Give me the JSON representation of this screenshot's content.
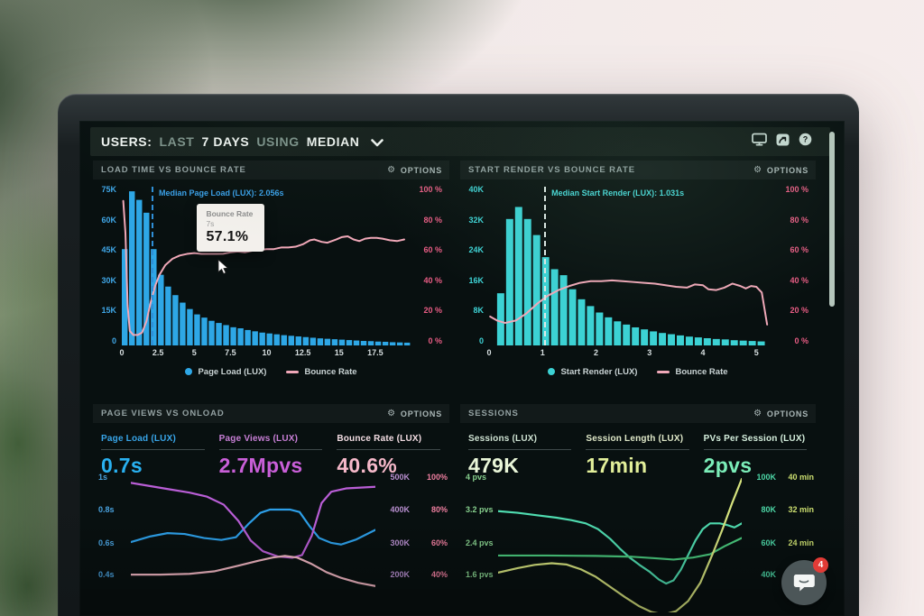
{
  "header": {
    "segments": [
      {
        "text": "USERS:",
        "em": true
      },
      {
        "text": "LAST",
        "em": false
      },
      {
        "text": "7 DAYS",
        "em": true
      },
      {
        "text": "USING",
        "em": false
      },
      {
        "text": "MEDIAN",
        "em": true
      }
    ]
  },
  "panels": {
    "load_time": {
      "title": "LOAD TIME VS BOUNCE RATE",
      "options": "OPTIONS"
    },
    "start_render": {
      "title": "START RENDER VS BOUNCE RATE",
      "options": "OPTIONS"
    },
    "page_views": {
      "title": "PAGE VIEWS VS ONLOAD",
      "options": "OPTIONS",
      "metrics": [
        {
          "label": "Page Load (LUX)",
          "value": "0.7s"
        },
        {
          "label": "Page Views (LUX)",
          "value": "2.7Mpvs"
        },
        {
          "label": "Bounce Rate (LUX)",
          "value": "40.6%"
        }
      ]
    },
    "sessions": {
      "title": "SESSIONS",
      "options": "OPTIONS",
      "metrics": [
        {
          "label": "Sessions (LUX)",
          "value": "479K"
        },
        {
          "label": "Session Length (LUX)",
          "value": "17min"
        },
        {
          "label": "PVs Per Session (LUX)",
          "value": "2pvs"
        }
      ]
    }
  },
  "chat": {
    "badge": "4"
  },
  "chart_data": [
    {
      "id": "load-time",
      "type": "histogram",
      "title": "LOAD TIME VS BOUNCE RATE",
      "x_max": 20,
      "x_ticks": [
        0,
        2.5,
        5,
        7.5,
        10,
        12.5,
        15,
        17.5
      ],
      "y_left_max": 75,
      "y_left_ticks": [
        "75K",
        "60K",
        "45K",
        "30K",
        "15K",
        "0"
      ],
      "y_right_ticks": [
        "100 %",
        "80 %",
        "60 %",
        "40 %",
        "20 %",
        "0 %"
      ],
      "bars": {
        "name": "Page Load (LUX)",
        "color": "#2ea7e6",
        "start": 0,
        "bin": 0.5,
        "unit": "K",
        "values": [
          45,
          72,
          68,
          62,
          45,
          33,
          27.5,
          23.5,
          20,
          17,
          14.5,
          13,
          11.5,
          10.5,
          9.5,
          8.5,
          8,
          7.2,
          6.6,
          6,
          5.6,
          5.2,
          4.8,
          4.5,
          4.2,
          3.9,
          3.6,
          3.3,
          3.1,
          2.9,
          2.7,
          2.5,
          2.3,
          2.1,
          2,
          1.8,
          1.7,
          1.5,
          1.4,
          1.3
        ]
      },
      "line": {
        "name": "Bounce Rate",
        "color": "#f0a8b8",
        "unit": "%",
        "points": [
          [
            0.1,
            90
          ],
          [
            0.25,
            70
          ],
          [
            0.4,
            25
          ],
          [
            0.55,
            9
          ],
          [
            0.8,
            6.5
          ],
          [
            1.1,
            6.5
          ],
          [
            1.4,
            8
          ],
          [
            1.7,
            15
          ],
          [
            2,
            27
          ],
          [
            2.3,
            37
          ],
          [
            2.6,
            44
          ],
          [
            3,
            50
          ],
          [
            3.5,
            54
          ],
          [
            4,
            56
          ],
          [
            4.5,
            57
          ],
          [
            5,
            57.5
          ],
          [
            5.5,
            57
          ],
          [
            6,
            57
          ],
          [
            6.5,
            57
          ],
          [
            7,
            57.1
          ],
          [
            7.5,
            58
          ],
          [
            8,
            58.5
          ],
          [
            8.5,
            58
          ],
          [
            9,
            59
          ],
          [
            9.5,
            59.5
          ],
          [
            10,
            60
          ],
          [
            10.5,
            60
          ],
          [
            11,
            61
          ],
          [
            11.5,
            61
          ],
          [
            12,
            61.5
          ],
          [
            12.5,
            63
          ],
          [
            13,
            65.5
          ],
          [
            13.3,
            66
          ],
          [
            13.8,
            64.5
          ],
          [
            14.2,
            64
          ],
          [
            14.8,
            66
          ],
          [
            15.2,
            67.5
          ],
          [
            15.6,
            68
          ],
          [
            16,
            66
          ],
          [
            16.4,
            65
          ],
          [
            16.8,
            66.5
          ],
          [
            17.2,
            67
          ],
          [
            17.6,
            67
          ],
          [
            18,
            66.5
          ],
          [
            18.5,
            65.5
          ],
          [
            19,
            65
          ],
          [
            19.5,
            66
          ]
        ]
      },
      "median": {
        "label": "Median Page Load (LUX): 2.056s",
        "x": 2.056,
        "line_color": "#2f8fd8",
        "text_color": "#3aa0e8"
      },
      "tooltip": {
        "title": "Bounce Rate",
        "subtitle": "7s",
        "value": "57.1%"
      },
      "legend": [
        {
          "marker": "dot",
          "color": "#2ea7e6",
          "label": "Page Load (LUX)"
        },
        {
          "marker": "line",
          "color": "#f0a8b8",
          "label": "Bounce Rate"
        }
      ]
    },
    {
      "id": "start-render",
      "type": "histogram",
      "title": "START RENDER VS BOUNCE RATE",
      "x_max": 5.4,
      "x_ticks": [
        0,
        1,
        2,
        3,
        4,
        5
      ],
      "y_left_max": 40,
      "y_left_ticks": [
        "40K",
        "32K",
        "24K",
        "16K",
        "8K",
        "0"
      ],
      "y_right_ticks": [
        "100 %",
        "80 %",
        "60 %",
        "40 %",
        "20 %",
        "0 %"
      ],
      "bars": {
        "name": "Start Render (LUX)",
        "color": "#3cd2d4",
        "start": 0.15,
        "bin": 0.168,
        "unit": "K",
        "values": [
          13,
          31.5,
          34.5,
          31.5,
          27.5,
          22,
          19,
          17.5,
          14,
          11.5,
          9.8,
          8.2,
          7,
          6,
          5.2,
          4.5,
          4,
          3.5,
          3.1,
          2.8,
          2.5,
          2.2,
          2,
          1.8,
          1.6,
          1.5,
          1.3,
          1.2,
          1.1,
          1
        ]
      },
      "line": {
        "name": "Bounce Rate",
        "color": "#f0a8b8",
        "unit": "%",
        "points": [
          [
            0.02,
            18
          ],
          [
            0.15,
            15.5
          ],
          [
            0.3,
            14
          ],
          [
            0.5,
            15.5
          ],
          [
            0.7,
            20
          ],
          [
            0.9,
            26
          ],
          [
            1.1,
            31
          ],
          [
            1.3,
            34.5
          ],
          [
            1.5,
            37
          ],
          [
            1.7,
            39
          ],
          [
            1.9,
            40
          ],
          [
            2.1,
            40
          ],
          [
            2.3,
            40.5
          ],
          [
            2.5,
            40
          ],
          [
            2.7,
            39.5
          ],
          [
            2.9,
            39
          ],
          [
            3.1,
            38.5
          ],
          [
            3.3,
            37.5
          ],
          [
            3.5,
            36.5
          ],
          [
            3.7,
            36
          ],
          [
            3.85,
            38
          ],
          [
            4,
            37.5
          ],
          [
            4.1,
            35
          ],
          [
            4.25,
            34.5
          ],
          [
            4.4,
            36
          ],
          [
            4.55,
            38.5
          ],
          [
            4.7,
            37
          ],
          [
            4.8,
            35.5
          ],
          [
            4.9,
            37
          ],
          [
            5,
            36.5
          ],
          [
            5.1,
            33
          ],
          [
            5.2,
            13
          ]
        ]
      },
      "median": {
        "label": "Median Start Render (LUX): 1.031s",
        "x": 1.031,
        "line_color": "#dfe9e6",
        "text_color": "#46d8d8"
      },
      "legend": [
        {
          "marker": "dot",
          "color": "#3cd2d4",
          "label": "Start Render (LUX)"
        },
        {
          "marker": "line",
          "color": "#f0a8b8",
          "label": "Bounce Rate"
        }
      ]
    },
    {
      "id": "page-views",
      "type": "multiline",
      "title": "PAGE VIEWS VS ONLOAD",
      "rows": {
        "left": [
          "1s",
          "0.8s",
          "0.6s",
          "0.4s"
        ],
        "left_color": "#4aa3e0",
        "right": [
          [
            "500K",
            "100%"
          ],
          [
            "400K",
            "80%"
          ],
          [
            "300K",
            "60%"
          ],
          [
            "200K",
            "40%"
          ]
        ],
        "k_color": "#b78ecf",
        "u_color": "#ef7fa0"
      },
      "series": [
        {
          "name": "Page Load (LUX)",
          "unit": "s",
          "color": "#2d9fe8",
          "max": 1,
          "min": 0.4,
          "points": [
            [
              0,
              0.6
            ],
            [
              8,
              0.635
            ],
            [
              15,
              0.655
            ],
            [
              22,
              0.65
            ],
            [
              30,
              0.625
            ],
            [
              37,
              0.613
            ],
            [
              43,
              0.63
            ],
            [
              48,
              0.71
            ],
            [
              53,
              0.78
            ],
            [
              57,
              0.8
            ],
            [
              65,
              0.8
            ],
            [
              69,
              0.785
            ],
            [
              73,
              0.7
            ],
            [
              77,
              0.625
            ],
            [
              82,
              0.595
            ],
            [
              86,
              0.585
            ],
            [
              92,
              0.615
            ],
            [
              100,
              0.675
            ]
          ]
        },
        {
          "name": "Page Views (LUX)",
          "unit": "K",
          "color": "#b95ed6",
          "max": 500,
          "min": 200,
          "points": [
            [
              0,
              482
            ],
            [
              8,
              472
            ],
            [
              16,
              462
            ],
            [
              24,
              452
            ],
            [
              31,
              440
            ],
            [
              38,
              415
            ],
            [
              44,
              365
            ],
            [
              49,
              305
            ],
            [
              54,
              272
            ],
            [
              60,
              256
            ],
            [
              66,
              252
            ],
            [
              70,
              260
            ],
            [
              74,
              320
            ],
            [
              78,
              420
            ],
            [
              82,
              455
            ],
            [
              88,
              465
            ],
            [
              100,
              470
            ]
          ]
        },
        {
          "name": "Bounce Rate (LUX)",
          "unit": "%",
          "color": "#f0b6c2",
          "max": 100,
          "min": 40,
          "points": [
            [
              0,
              40
            ],
            [
              12,
              40
            ],
            [
              24,
              40.5
            ],
            [
              34,
              42
            ],
            [
              44,
              45.5
            ],
            [
              52,
              48.5
            ],
            [
              58,
              50.5
            ],
            [
              63,
              51.5
            ],
            [
              68,
              50.5
            ],
            [
              74,
              46.5
            ],
            [
              80,
              41.5
            ],
            [
              86,
              38
            ],
            [
              93,
              35
            ],
            [
              100,
              33
            ]
          ]
        }
      ]
    },
    {
      "id": "sessions",
      "type": "multiline",
      "title": "SESSIONS",
      "rows": {
        "left": [
          "4 pvs",
          "3.2 pvs",
          "2.4 pvs",
          "1.6 pvs"
        ],
        "left_color": "#86cf8d",
        "right": [
          [
            "100K",
            "40 min"
          ],
          [
            "80K",
            "32 min"
          ],
          [
            "60K",
            "24 min"
          ],
          [
            "40K",
            ""
          ]
        ],
        "k_color": "#4cd6a6",
        "u_color": "#ccdf70"
      },
      "series": [
        {
          "name": "Sessions (LUX)",
          "unit": "K",
          "color": "#4fdcb0",
          "max": 100,
          "min": 40,
          "points": [
            [
              0,
              79
            ],
            [
              8,
              78
            ],
            [
              16,
              76.5
            ],
            [
              24,
              75
            ],
            [
              30,
              73.5
            ],
            [
              36,
              71.5
            ],
            [
              41,
              68
            ],
            [
              46,
              62
            ],
            [
              50,
              56
            ],
            [
              54,
              50.5
            ],
            [
              58,
              46
            ],
            [
              62,
              42
            ],
            [
              66,
              37
            ],
            [
              69,
              34.5
            ],
            [
              72,
              36.5
            ],
            [
              75,
              43
            ],
            [
              78,
              52
            ],
            [
              81,
              61
            ],
            [
              84,
              68
            ],
            [
              87,
              71.5
            ],
            [
              91,
              71.5
            ],
            [
              94,
              70.5
            ],
            [
              97,
              69
            ],
            [
              100,
              71.5
            ]
          ]
        },
        {
          "name": "PVs Per Session (LUX)",
          "unit": "pvs",
          "color": "#49c77c",
          "max": 4,
          "min": 1.6,
          "points": [
            [
              0,
              2.07
            ],
            [
              20,
              2.07
            ],
            [
              40,
              2.06
            ],
            [
              55,
              2.04
            ],
            [
              65,
              2
            ],
            [
              72,
              1.97
            ],
            [
              80,
              2.02
            ],
            [
              87,
              2.1
            ],
            [
              93,
              2.3
            ],
            [
              100,
              2.5
            ]
          ]
        },
        {
          "name": "Session Length (LUX)",
          "unit": "min",
          "color": "#d6e37e",
          "max": 40,
          "min": 16,
          "points": [
            [
              0,
              16.5
            ],
            [
              8,
              17.6
            ],
            [
              15,
              18.4
            ],
            [
              22,
              18.8
            ],
            [
              28,
              18.5
            ],
            [
              34,
              17.3
            ],
            [
              40,
              15.5
            ],
            [
              46,
              13
            ],
            [
              52,
              10.5
            ],
            [
              58,
              8.2
            ],
            [
              63,
              6.8
            ],
            [
              68,
              6.2
            ],
            [
              73,
              7
            ],
            [
              78,
              9.5
            ],
            [
              83,
              14
            ],
            [
              88,
              21
            ],
            [
              92,
              27
            ],
            [
              96,
              33.5
            ],
            [
              100,
              39.5
            ]
          ]
        }
      ]
    }
  ]
}
